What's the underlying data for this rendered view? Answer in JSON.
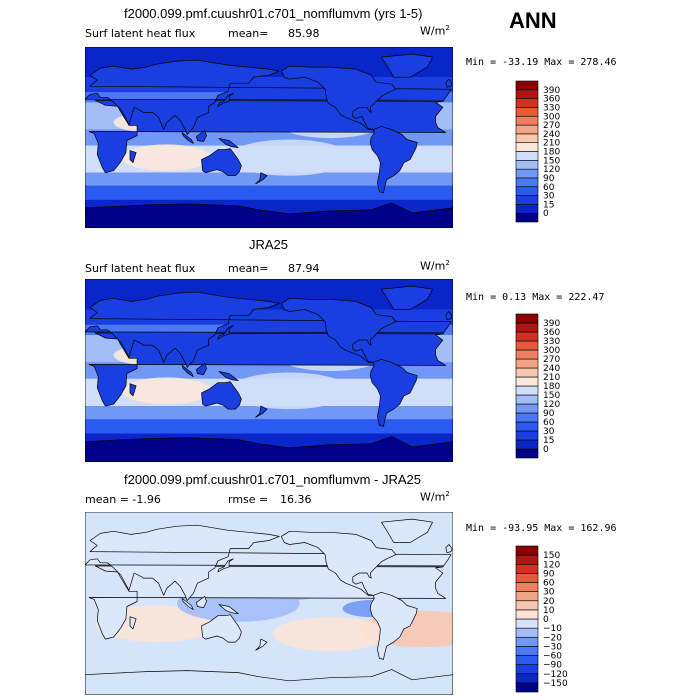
{
  "season": "ANN",
  "unit_prefix": "W/m",
  "unit_exp": "2",
  "panels": [
    {
      "title": "f2000.099.pmf.cuushr01.c701_nomflumvm (yrs 1-5)",
      "left_label": "Surf latent heat flux",
      "stat_label": "mean=",
      "stat_value": "85.98",
      "minmax": "Min = -33.19 Max = 278.46"
    },
    {
      "title": "JRA25",
      "left_label": "Surf latent heat flux",
      "stat_label": "mean=",
      "stat_value": "87.94",
      "minmax": "Min =   0.13 Max = 222.47"
    },
    {
      "title": "f2000.099.pmf.cuushr01.c701_nomflumvm - JRA25",
      "left_label": "mean =   -1.96",
      "stat_label": "rmse =",
      "stat_value": "16.36",
      "minmax": "Min = -93.95 Max = 162.96"
    }
  ],
  "chart_data": [
    {
      "type": "heatmap",
      "title": "f2000.099.pmf.cuushr01.c701_nomflumvm (yrs 1-5)",
      "subtitle": "Surf latent heat flux",
      "mean": 85.98,
      "min": -33.19,
      "max": 278.46,
      "colorbar_levels": [
        0,
        15,
        30,
        60,
        90,
        120,
        150,
        180,
        210,
        240,
        270,
        300,
        330,
        360,
        390
      ],
      "colorbar_colors": [
        "#00008b",
        "#0a25c8",
        "#1a3fe0",
        "#2b5af0",
        "#4b78f5",
        "#7298f5",
        "#a3bdf7",
        "#d0def9",
        "#fbe8dc",
        "#f8c7b0",
        "#f4a487",
        "#f07f60",
        "#e8583a",
        "#d23020",
        "#b01515",
        "#8b0000"
      ],
      "units": "W/m2"
    },
    {
      "type": "heatmap",
      "title": "JRA25",
      "subtitle": "Surf latent heat flux",
      "mean": 87.94,
      "min": 0.13,
      "max": 222.47,
      "colorbar_levels": [
        0,
        15,
        30,
        60,
        90,
        120,
        150,
        180,
        210,
        240,
        270,
        300,
        330,
        360,
        390
      ],
      "colorbar_colors": [
        "#00008b",
        "#0a25c8",
        "#1a3fe0",
        "#2b5af0",
        "#4b78f5",
        "#7298f5",
        "#a3bdf7",
        "#d0def9",
        "#fbe8dc",
        "#f8c7b0",
        "#f4a487",
        "#f07f60",
        "#e8583a",
        "#d23020",
        "#b01515",
        "#8b0000"
      ],
      "units": "W/m2"
    },
    {
      "type": "heatmap",
      "title": "f2000.099.pmf.cuushr01.c701_nomflumvm - JRA25",
      "mean": -1.96,
      "rmse": 16.36,
      "min": -93.95,
      "max": 162.96,
      "colorbar_levels": [
        -150,
        -120,
        -90,
        -60,
        -30,
        -20,
        -10,
        0,
        10,
        20,
        30,
        60,
        90,
        120,
        150
      ],
      "colorbar_colors": [
        "#00008b",
        "#0a25c8",
        "#1a3fe0",
        "#2b5af0",
        "#4b78f5",
        "#7298f5",
        "#a3bdf7",
        "#d6e4fa",
        "#fbe3d6",
        "#f8c7b0",
        "#f4a487",
        "#f07f60",
        "#e8583a",
        "#d23020",
        "#b01515",
        "#8b0000"
      ],
      "units": "W/m2"
    }
  ]
}
